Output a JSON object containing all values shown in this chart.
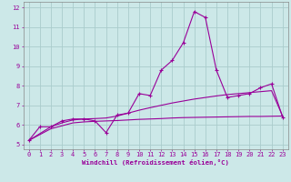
{
  "x": [
    0,
    1,
    2,
    3,
    4,
    5,
    6,
    7,
    8,
    9,
    10,
    11,
    12,
    13,
    14,
    15,
    16,
    17,
    18,
    19,
    20,
    21,
    22,
    23
  ],
  "y_main": [
    5.2,
    5.9,
    5.9,
    6.2,
    6.3,
    6.3,
    6.2,
    5.6,
    6.5,
    6.6,
    7.6,
    7.5,
    8.8,
    9.3,
    10.2,
    11.8,
    11.5,
    8.8,
    7.4,
    7.5,
    7.6,
    7.9,
    8.1,
    6.4
  ],
  "y_flat": [
    5.2,
    5.5,
    5.8,
    5.95,
    6.1,
    6.15,
    6.18,
    6.2,
    6.22,
    6.25,
    6.28,
    6.3,
    6.32,
    6.35,
    6.37,
    6.38,
    6.39,
    6.4,
    6.41,
    6.42,
    6.43,
    6.43,
    6.44,
    6.45
  ],
  "y_rising": [
    5.2,
    5.55,
    5.9,
    6.1,
    6.25,
    6.3,
    6.32,
    6.35,
    6.45,
    6.6,
    6.75,
    6.88,
    7.0,
    7.12,
    7.22,
    7.32,
    7.4,
    7.48,
    7.55,
    7.6,
    7.65,
    7.7,
    7.75,
    6.45
  ],
  "line_color": "#990099",
  "bg_color": "#cce8e8",
  "grid_color": "#aacccc",
  "axis_color": "#990099",
  "xlabel": "Windchill (Refroidissement éolien,°C)",
  "xlim": [
    -0.5,
    23.5
  ],
  "ylim": [
    4.75,
    12.3
  ],
  "yticks": [
    5,
    6,
    7,
    8,
    9,
    10,
    11,
    12
  ],
  "xticks": [
    0,
    1,
    2,
    3,
    4,
    5,
    6,
    7,
    8,
    9,
    10,
    11,
    12,
    13,
    14,
    15,
    16,
    17,
    18,
    19,
    20,
    21,
    22,
    23
  ]
}
